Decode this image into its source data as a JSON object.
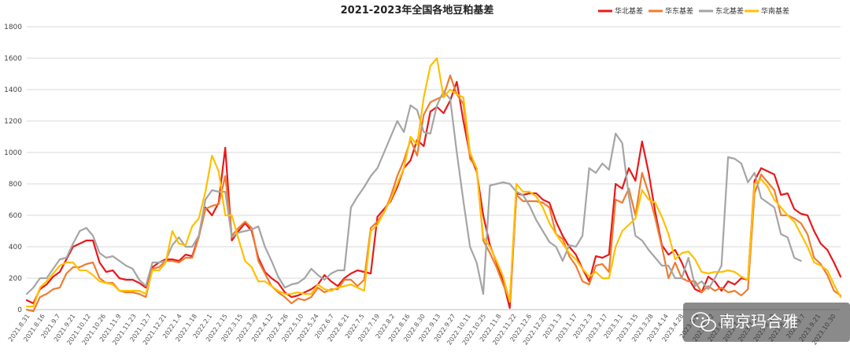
{
  "chart_data": {
    "type": "line",
    "title": "2021-2023年全国各地豆粕基差",
    "xlabel": "",
    "ylabel": "",
    "ylim": [
      0,
      1800
    ],
    "yticks": [
      0,
      200,
      400,
      600,
      800,
      1000,
      1200,
      1400,
      1600,
      1800
    ],
    "grid": true,
    "legend_position": "top-right",
    "x_tick_labels": [
      "2021.8.31",
      "2021.8.16",
      "2021.9.7",
      "2021.9.21",
      "2021.10.12",
      "2021.10.26",
      "2021.11.9",
      "2021.11.23",
      "2021.12.7",
      "2021.12.21",
      "2022.1.4",
      "2022.1.18",
      "2022.2.1",
      "2022.2.15",
      "2022.3.15",
      "2022.3.29",
      "2022.4.12",
      "2022.4.26",
      "2022.5.10",
      "2022.5.24",
      "2022.6.7",
      "2022.6.21",
      "2022.7.5",
      "2022.7.19",
      "2022.8.2",
      "2022.8.16",
      "2022.8.30",
      "2022.9.13",
      "2022.9.27",
      "2022.10.11",
      "2022.10.25",
      "2022.11.8",
      "2022.11.22",
      "2022.12.6",
      "2022.12.20",
      "2023.1.3",
      "2023.1.17",
      "2023.2.3",
      "2023.2.17",
      "2023.3.1",
      "2023.3.15",
      "2023.3.28",
      "2023.4.14",
      "2023.4.28",
      "2023.5.9",
      "2023.5.22",
      "2023.6.30",
      "2023.7.13",
      "2023.7.27",
      "2023.8.10",
      "2023.8.24",
      "2023.9.7",
      "2023.9.21",
      "2023.10.30"
    ],
    "series": [
      {
        "name": "华北基差",
        "color": "#e8191b",
        "values": [
          60,
          40,
          130,
          160,
          210,
          240,
          320,
          400,
          420,
          440,
          440,
          300,
          240,
          250,
          200,
          190,
          190,
          170,
          140,
          270,
          300,
          320,
          320,
          310,
          350,
          340,
          470,
          650,
          600,
          680,
          1030,
          440,
          500,
          550,
          500,
          330,
          240,
          200,
          170,
          110,
          80,
          90,
          110,
          130,
          160,
          220,
          180,
          150,
          200,
          230,
          250,
          240,
          230,
          590,
          640,
          690,
          780,
          900,
          950,
          1080,
          1040,
          1260,
          1290,
          1250,
          1330,
          1450,
          1200,
          980,
          880,
          600,
          410,
          300,
          180,
          10,
          740,
          730,
          740,
          740,
          700,
          680,
          560,
          470,
          400,
          350,
          260,
          180,
          340,
          330,
          350,
          800,
          770,
          900,
          820,
          1070,
          870,
          620,
          410,
          350,
          380,
          300,
          200,
          130,
          110,
          210,
          180,
          120,
          180,
          160,
          200,
          190,
          820,
          900,
          880,
          860,
          730,
          740,
          640,
          610,
          600,
          500,
          420,
          380,
          300,
          210
        ]
      },
      {
        "name": "华东基差",
        "color": "#ee7d31",
        "values": [
          0,
          -10,
          80,
          100,
          130,
          140,
          230,
          270,
          270,
          290,
          300,
          200,
          170,
          170,
          120,
          110,
          110,
          100,
          80,
          260,
          270,
          310,
          310,
          300,
          330,
          330,
          460,
          640,
          660,
          670,
          850,
          470,
          520,
          560,
          520,
          310,
          230,
          150,
          110,
          80,
          40,
          70,
          60,
          80,
          140,
          110,
          130,
          130,
          190,
          190,
          150,
          190,
          520,
          560,
          620,
          720,
          850,
          950,
          1080,
          980,
          1240,
          1320,
          1340,
          1360,
          1490,
          1370,
          1310,
          960,
          900,
          440,
          360,
          270,
          160,
          60,
          730,
          690,
          690,
          690,
          680,
          650,
          480,
          450,
          340,
          280,
          180,
          160,
          280,
          290,
          240,
          700,
          680,
          770,
          600,
          870,
          740,
          580,
          400,
          200,
          300,
          200,
          180,
          180,
          110,
          150,
          120,
          140,
          110,
          120,
          90,
          130,
          740,
          860,
          810,
          760,
          600,
          600,
          580,
          550,
          480,
          330,
          290,
          220,
          120,
          90
        ]
      },
      {
        "name": "东北基差",
        "color": "#a5a5a5",
        "values": [
          100,
          140,
          200,
          200,
          260,
          320,
          330,
          420,
          500,
          520,
          470,
          360,
          330,
          340,
          310,
          280,
          260,
          190,
          150,
          300,
          300,
          310,
          410,
          460,
          400,
          400,
          470,
          700,
          760,
          750,
          750,
          460,
          490,
          500,
          510,
          530,
          400,
          310,
          210,
          140,
          160,
          170,
          200,
          260,
          220,
          190,
          230,
          250,
          250,
          650,
          720,
          780,
          850,
          900,
          1000,
          1100,
          1200,
          1130,
          1300,
          1270,
          1130,
          1120,
          1300,
          1390,
          1340,
          1000,
          690,
          400,
          300,
          100,
          790,
          800,
          810,
          800,
          750,
          730,
          660,
          570,
          500,
          430,
          400,
          310,
          410,
          400,
          470,
          900,
          870,
          930,
          890,
          1120,
          1060,
          720,
          470,
          440,
          380,
          330,
          280,
          280,
          200,
          200,
          330,
          150,
          180,
          130,
          200,
          280,
          970,
          960,
          930,
          810,
          870,
          710,
          680,
          650,
          480,
          460,
          330,
          310
        ]
      },
      {
        "name": "华南基差",
        "color": "#ffc000",
        "values": [
          20,
          20,
          140,
          180,
          230,
          280,
          300,
          300,
          250,
          250,
          220,
          180,
          170,
          160,
          120,
          120,
          120,
          120,
          100,
          250,
          250,
          300,
          500,
          420,
          410,
          530,
          580,
          750,
          980,
          880,
          600,
          600,
          450,
          310,
          270,
          180,
          180,
          150,
          120,
          100,
          100,
          110,
          100,
          100,
          160,
          130,
          120,
          140,
          150,
          160,
          140,
          120,
          500,
          540,
          620,
          700,
          800,
          900,
          1100,
          1050,
          1350,
          1550,
          1600,
          1350,
          1400,
          1370,
          1350,
          1000,
          900,
          460,
          400,
          310,
          210,
          50,
          800,
          750,
          750,
          720,
          650,
          550,
          480,
          420,
          360,
          320,
          260,
          210,
          240,
          200,
          200,
          400,
          500,
          540,
          580,
          760,
          700,
          680,
          590,
          480,
          320,
          360,
          370,
          320,
          240,
          230,
          240,
          240,
          250,
          240,
          210,
          190,
          800,
          830,
          780,
          700,
          650,
          600,
          560,
          480,
          400,
          300,
          280,
          250,
          160,
          80
        ]
      }
    ]
  },
  "watermark": {
    "text": "南京玛合雅"
  }
}
